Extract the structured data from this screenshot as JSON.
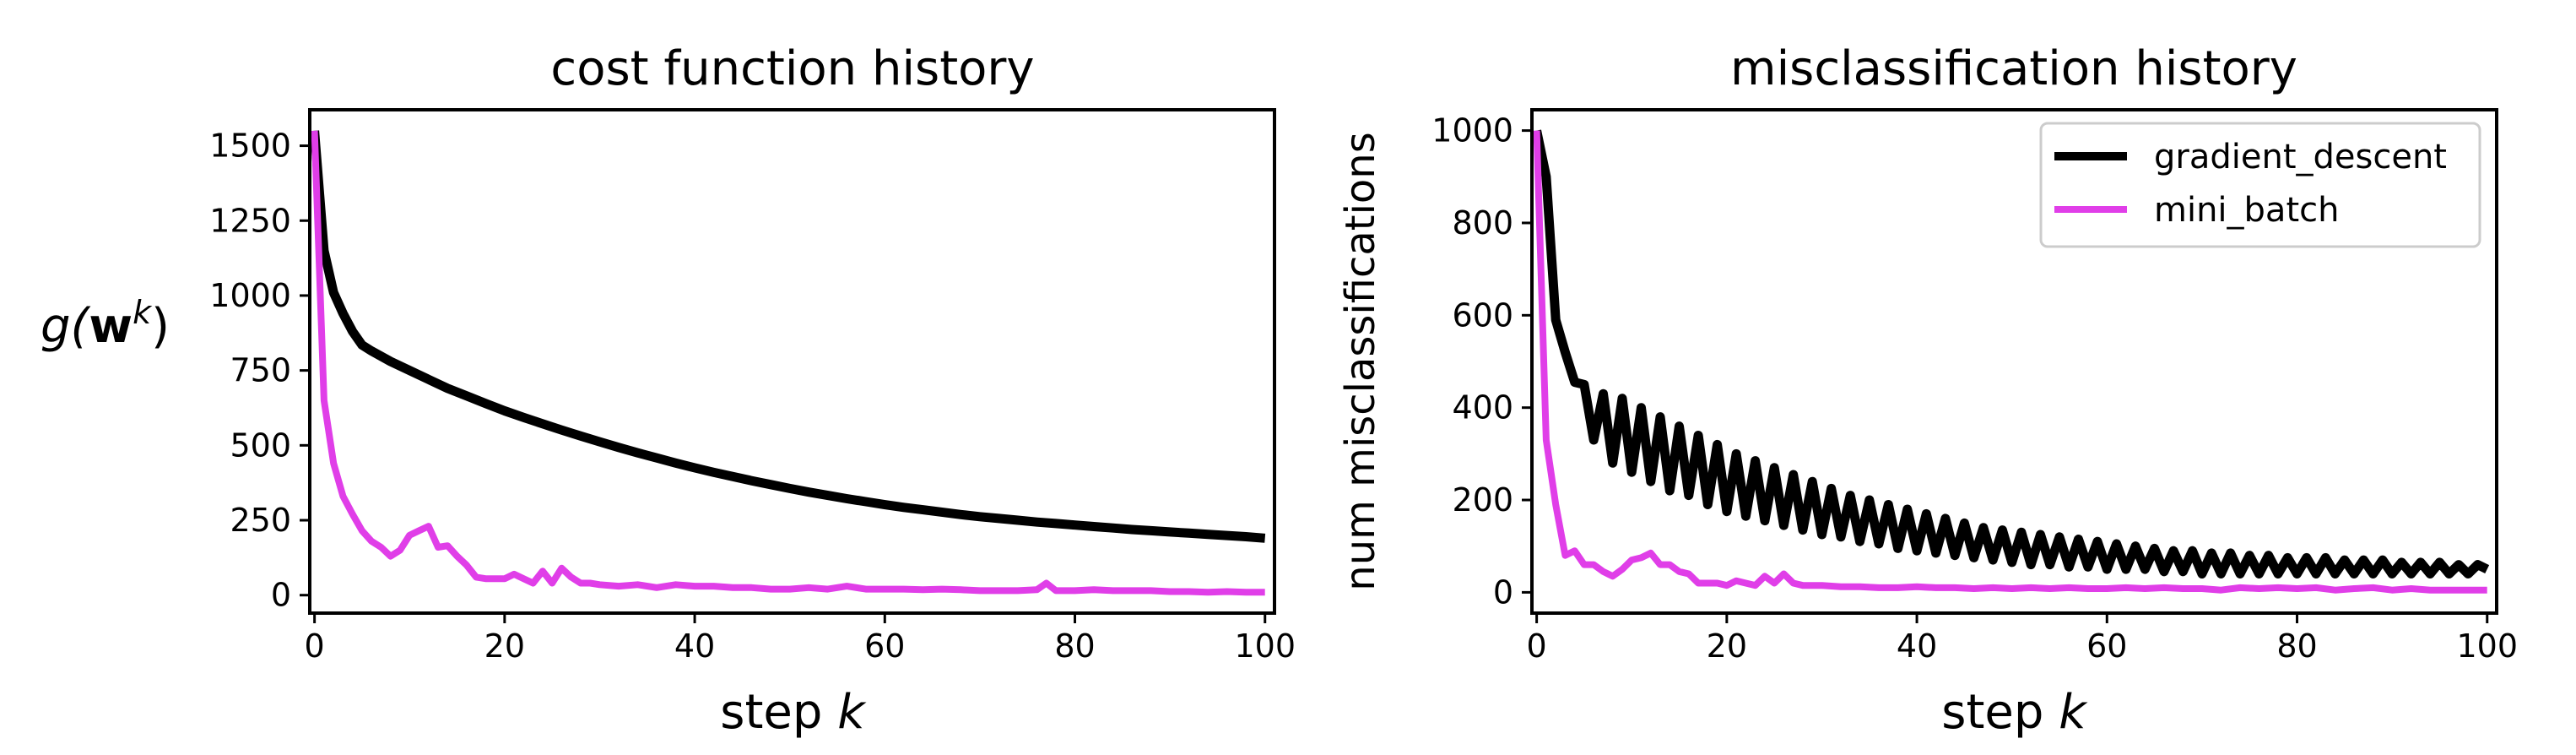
{
  "chart_data": [
    {
      "type": "line",
      "title": "cost function history",
      "xlabel_prefix": "step",
      "xlabel_var": "k",
      "ylabel_fn": "g(",
      "ylabel_bold": "w",
      "ylabel_sup": "k",
      "ylabel_close": ")",
      "xlim": [
        -0.5,
        101
      ],
      "ylim": [
        -60,
        1620
      ],
      "xticks": [
        0,
        20,
        40,
        60,
        80,
        100
      ],
      "yticks": [
        0,
        250,
        500,
        750,
        1000,
        1250,
        1500
      ],
      "series": [
        {
          "color": "#000000",
          "x": [
            0,
            1,
            2,
            3,
            4,
            5,
            6,
            8,
            10,
            12,
            14,
            16,
            18,
            20,
            22,
            24,
            26,
            28,
            30,
            32,
            34,
            36,
            38,
            40,
            42,
            44,
            46,
            48,
            50,
            52,
            54,
            56,
            58,
            60,
            62,
            64,
            66,
            68,
            70,
            72,
            74,
            76,
            78,
            80,
            82,
            84,
            86,
            88,
            90,
            92,
            94,
            96,
            98,
            100
          ],
          "y": [
            1550,
            1150,
            1010,
            940,
            880,
            835,
            815,
            780,
            750,
            720,
            690,
            665,
            640,
            615,
            593,
            572,
            551,
            531,
            512,
            493,
            475,
            458,
            441,
            425,
            410,
            396,
            382,
            369,
            356,
            344,
            333,
            322,
            312,
            302,
            293,
            285,
            277,
            269,
            262,
            256,
            250,
            244,
            239,
            234,
            229,
            224,
            219,
            215,
            211,
            207,
            203,
            199,
            195,
            190
          ]
        },
        {
          "color": "#e03ee8",
          "x": [
            0,
            1,
            2,
            3,
            4,
            5,
            6,
            7,
            8,
            9,
            10,
            11,
            12,
            13,
            14,
            15,
            16,
            17,
            18,
            19,
            20,
            21,
            22,
            23,
            24,
            25,
            26,
            27,
            28,
            29,
            30,
            32,
            34,
            36,
            38,
            40,
            42,
            44,
            46,
            48,
            50,
            52,
            54,
            56,
            58,
            60,
            62,
            64,
            66,
            68,
            70,
            72,
            74,
            76,
            77,
            78,
            80,
            82,
            84,
            86,
            88,
            90,
            92,
            94,
            96,
            98,
            100
          ],
          "y": [
            1550,
            650,
            440,
            330,
            270,
            215,
            180,
            160,
            130,
            150,
            200,
            215,
            230,
            160,
            165,
            130,
            100,
            60,
            55,
            55,
            55,
            70,
            55,
            40,
            80,
            40,
            90,
            60,
            40,
            40,
            35,
            30,
            35,
            25,
            35,
            30,
            30,
            25,
            25,
            20,
            20,
            25,
            20,
            30,
            20,
            20,
            20,
            18,
            20,
            18,
            15,
            15,
            15,
            18,
            40,
            15,
            15,
            18,
            15,
            15,
            15,
            12,
            12,
            10,
            12,
            10,
            10
          ]
        }
      ]
    },
    {
      "type": "line",
      "title": "misclassification history",
      "xlabel_prefix": "step",
      "xlabel_var": "k",
      "ylabel": "num misclassifications",
      "xlim": [
        -0.5,
        101
      ],
      "ylim": [
        -45,
        1045
      ],
      "xticks": [
        0,
        20,
        40,
        60,
        80,
        100
      ],
      "yticks": [
        0,
        200,
        400,
        600,
        800,
        1000
      ],
      "legend": {
        "position": "upper right"
      },
      "series": [
        {
          "name": "gradient_descent",
          "color": "#000000",
          "x": [
            0,
            1,
            2,
            3,
            4,
            5,
            6,
            7,
            8,
            9,
            10,
            11,
            12,
            13,
            14,
            15,
            16,
            17,
            18,
            19,
            20,
            21,
            22,
            23,
            24,
            25,
            26,
            27,
            28,
            29,
            30,
            31,
            32,
            33,
            34,
            35,
            36,
            37,
            38,
            39,
            40,
            41,
            42,
            43,
            44,
            45,
            46,
            47,
            48,
            49,
            50,
            51,
            52,
            53,
            54,
            55,
            56,
            57,
            58,
            59,
            60,
            61,
            62,
            63,
            64,
            65,
            66,
            67,
            68,
            69,
            70,
            71,
            72,
            73,
            74,
            75,
            76,
            77,
            78,
            79,
            80,
            81,
            82,
            83,
            84,
            85,
            86,
            87,
            88,
            89,
            90,
            91,
            92,
            93,
            94,
            95,
            96,
            97,
            98,
            99,
            100
          ],
          "y": [
            1000,
            900,
            590,
            520,
            455,
            450,
            330,
            430,
            280,
            420,
            260,
            400,
            240,
            380,
            220,
            360,
            210,
            340,
            190,
            320,
            175,
            300,
            165,
            285,
            155,
            270,
            145,
            255,
            135,
            240,
            125,
            225,
            120,
            210,
            110,
            200,
            105,
            190,
            95,
            180,
            90,
            170,
            85,
            160,
            80,
            150,
            75,
            140,
            70,
            135,
            65,
            130,
            60,
            125,
            60,
            120,
            55,
            115,
            55,
            110,
            50,
            105,
            50,
            100,
            50,
            95,
            45,
            90,
            45,
            90,
            40,
            85,
            40,
            85,
            40,
            80,
            40,
            80,
            40,
            75,
            40,
            75,
            40,
            75,
            40,
            70,
            40,
            70,
            40,
            70,
            40,
            65,
            40,
            65,
            40,
            65,
            40,
            60,
            40,
            60,
            50
          ]
        },
        {
          "name": "mini_batch",
          "color": "#e03ee8",
          "x": [
            0,
            1,
            2,
            3,
            4,
            5,
            6,
            7,
            8,
            9,
            10,
            11,
            12,
            13,
            14,
            15,
            16,
            17,
            18,
            19,
            20,
            21,
            22,
            23,
            24,
            25,
            26,
            27,
            28,
            30,
            32,
            34,
            36,
            38,
            40,
            42,
            44,
            46,
            48,
            50,
            52,
            54,
            56,
            58,
            60,
            62,
            64,
            66,
            68,
            70,
            72,
            74,
            76,
            78,
            80,
            82,
            84,
            86,
            88,
            90,
            92,
            94,
            96,
            98,
            100
          ],
          "y": [
            1000,
            330,
            190,
            80,
            90,
            60,
            60,
            45,
            35,
            50,
            70,
            75,
            85,
            60,
            60,
            45,
            40,
            20,
            20,
            20,
            15,
            25,
            20,
            15,
            35,
            20,
            40,
            20,
            15,
            15,
            12,
            12,
            10,
            10,
            12,
            10,
            10,
            8,
            10,
            8,
            10,
            8,
            10,
            8,
            8,
            10,
            8,
            10,
            8,
            8,
            5,
            10,
            8,
            10,
            8,
            10,
            5,
            8,
            10,
            5,
            8,
            5,
            5,
            5,
            5
          ]
        }
      ]
    }
  ]
}
